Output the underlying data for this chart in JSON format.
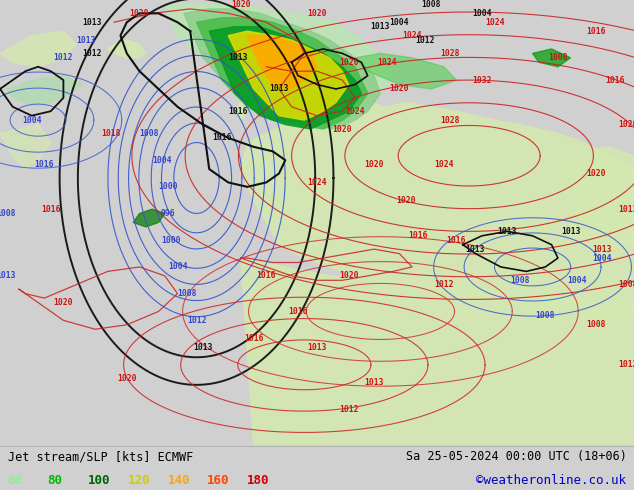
{
  "title_left": "Jet stream/SLP [kts] ECMWF",
  "title_right": "Sa 25-05-2024 00:00 UTC (18+06)",
  "credit": "©weatheronline.co.uk",
  "legend_values": [
    "60",
    "80",
    "100",
    "120",
    "140",
    "160",
    "180"
  ],
  "legend_colors": [
    "#90ee90",
    "#00bb00",
    "#006400",
    "#cccc00",
    "#ffa500",
    "#ff4500",
    "#cc0000"
  ],
  "ocean_color": "#e8e8e8",
  "land_color": "#d4e8b0",
  "fig_width": 6.34,
  "fig_height": 4.9,
  "dpi": 100,
  "bottom_bg": "#d0d0d0",
  "title_fontsize": 8.5,
  "legend_fontsize": 9,
  "credit_color": "#0000cc",
  "title_color": "#000000",
  "blue_label_color": "#3344cc",
  "red_label_color": "#cc1111",
  "black_label_color": "#111111",
  "blue_contour_color": "#3355cc",
  "red_contour_color": "#cc2222",
  "black_contour_color": "#111111",
  "jet_colors": [
    "#aaddaa",
    "#88cc88",
    "#44aa44",
    "#009900",
    "#cccc00",
    "#ffaa00"
  ],
  "jet_alphas": [
    0.7,
    0.75,
    0.8,
    0.85,
    0.9,
    0.9
  ]
}
